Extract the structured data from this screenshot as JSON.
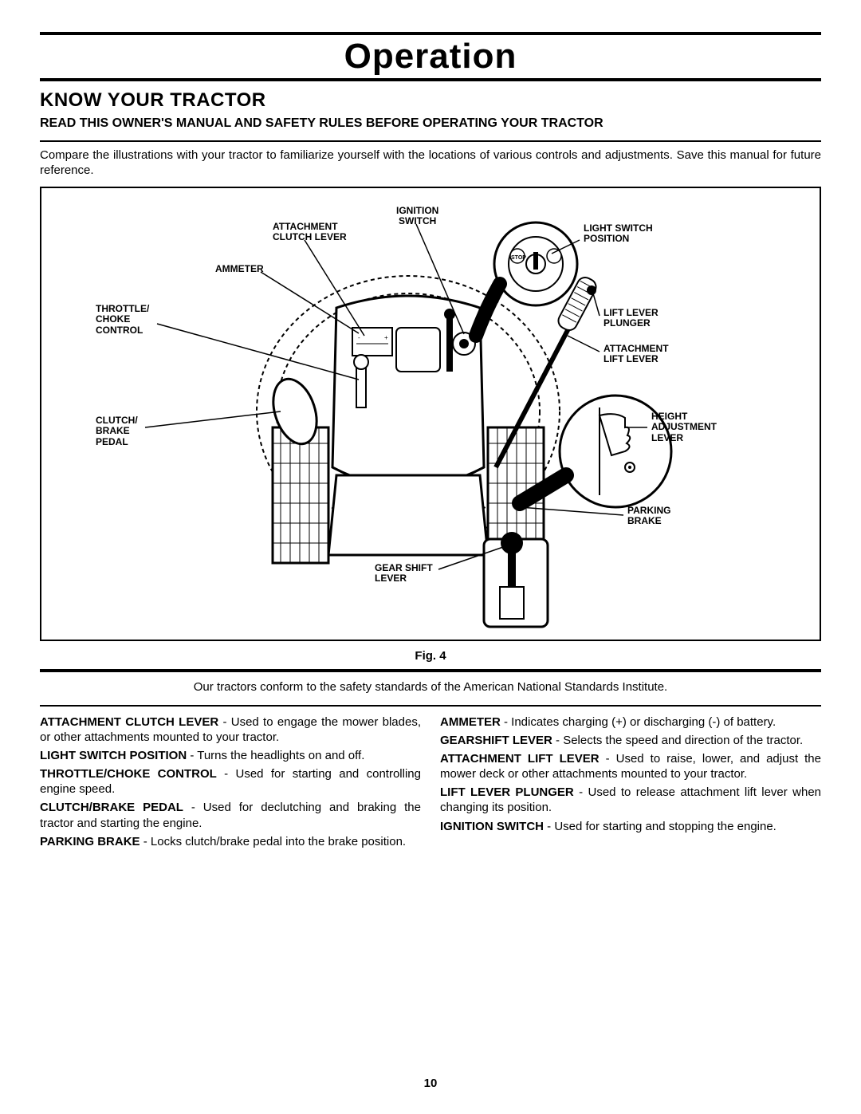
{
  "page": {
    "title": "Operation",
    "heading": "KNOW YOUR TRACTOR",
    "subheading": "READ THIS OWNER'S MANUAL AND SAFETY RULES BEFORE OPERATING YOUR TRACTOR",
    "intro": "Compare the illustrations with your tractor to familiarize yourself with the locations of various controls and adjustments. Save this manual for future reference.",
    "figCaption": "Fig. 4",
    "conformity": "Our tractors conform to the safety standards of the American National Standards Institute.",
    "pageNumber": "10"
  },
  "diagram": {
    "labels": {
      "ignitionSwitch": "IGNITION\nSWITCH",
      "attachmentClutchLever": "ATTACHMENT\nCLUTCH LEVER",
      "lightSwitchPosition": "LIGHT SWITCH\nPOSITION",
      "ammeter": "AMMETER",
      "throttleChoke": "THROTTLE/\nCHOKE\nCONTROL",
      "clutchBrakePedal": "CLUTCH/\nBRAKE\nPEDAL",
      "liftLeverPlunger": "LIFT LEVER\nPLUNGER",
      "attachmentLiftLever": "ATTACHMENT\nLIFT LEVER",
      "heightAdjustment": "HEIGHT\nADJUSTMENT\nLEVER",
      "parkingBrake": "PARKING\nBRAKE",
      "gearShiftLever": "GEAR SHIFT\nLEVER",
      "stop": "STOP"
    },
    "style": {
      "strokeColor": "#000000",
      "dashStroke": "4 3",
      "strokeWidth": 2,
      "fillWhite": "#ffffff",
      "fillBlack": "#000000"
    }
  },
  "definitions": {
    "left": [
      {
        "term": "ATTACHMENT CLUTCH LEVER",
        "text": " - Used to engage the mower blades, or other attachments mounted to your tractor."
      },
      {
        "term": "LIGHT SWITCH POSITION",
        "text": " - Turns the headlights on and off."
      },
      {
        "term": "THROTTLE/CHOKE CONTROL",
        "text": " - Used for starting and controlling engine speed."
      },
      {
        "term": "CLUTCH/BRAKE PEDAL",
        "text": " - Used for declutching and braking the tractor and starting the engine."
      },
      {
        "term": "PARKING BRAKE",
        "text": " - Locks clutch/brake pedal into the brake position."
      }
    ],
    "right": [
      {
        "term": "AMMETER",
        "text": " - Indicates charging (+) or discharging (-) of battery."
      },
      {
        "term": "GEARSHIFT  LEVER",
        "text": " - Selects the speed and direction of the tractor."
      },
      {
        "term": "ATTACHMENT LIFT LEVER",
        "text": " - Used to raise, lower, and adjust the mower deck or other attachments mounted to your tractor."
      },
      {
        "term": "LIFT LEVER PLUNGER",
        "text": " - Used to release attachment lift lever when changing its position."
      },
      {
        "term": "IGNITION SWITCH",
        "text": " - Used for starting and stopping the engine."
      }
    ]
  }
}
